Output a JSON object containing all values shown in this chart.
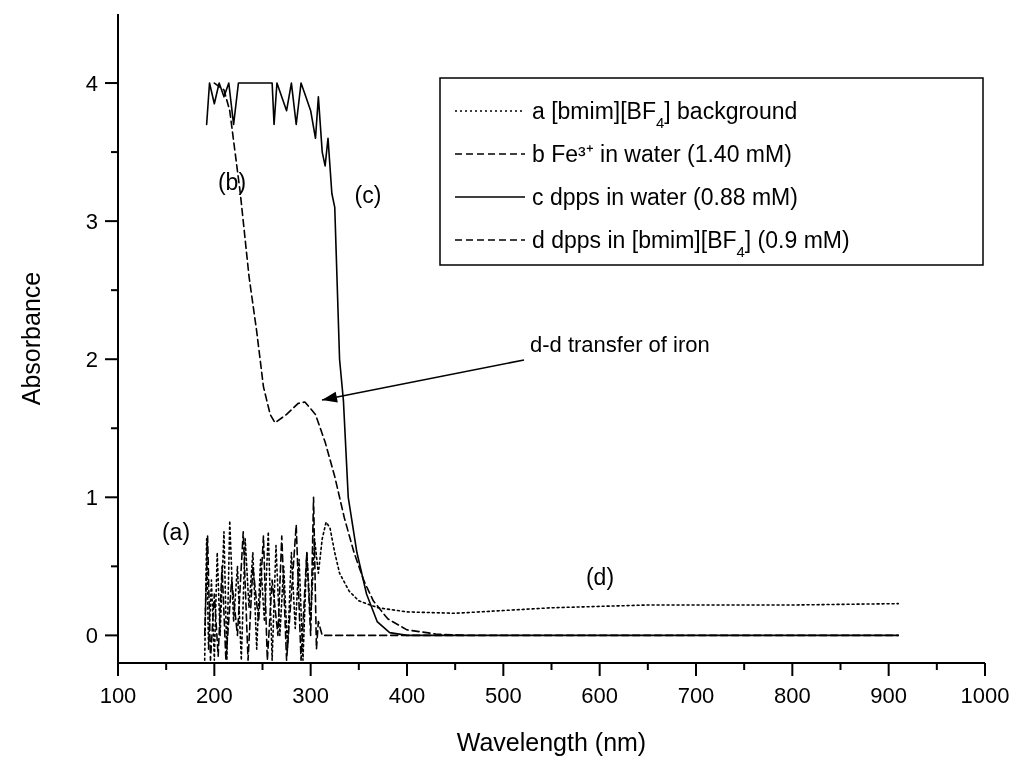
{
  "chart_data": {
    "type": "line",
    "xlabel": "Wavelength (nm)",
    "ylabel": "Absorbance",
    "xlim": [
      100,
      1000
    ],
    "ylim": [
      -0.2,
      4.5
    ],
    "xticks": [
      100,
      {
        "value": 150,
        "label": null
      },
      200,
      {
        "value": 250,
        "label": null
      },
      300,
      {
        "value": 350,
        "label": null
      },
      400,
      {
        "value": 450,
        "label": null
      },
      500,
      {
        "value": 550,
        "label": null
      },
      600,
      {
        "value": 650,
        "label": null
      },
      700,
      {
        "value": 750,
        "label": null
      },
      800,
      {
        "value": 850,
        "label": null
      },
      900,
      {
        "value": 950,
        "label": null
      },
      1000
    ],
    "yticks": [
      0,
      {
        "value": 0.5,
        "label": null
      },
      1,
      {
        "value": 1.5,
        "label": null
      },
      2,
      {
        "value": 2.5,
        "label": null
      },
      3,
      {
        "value": 3.5,
        "label": null
      },
      4
    ],
    "grid": false,
    "legend": "top right",
    "series": [
      {
        "name": "a [bmim][BF$_{4}$] background",
        "color": "#000000",
        "line_style": "dotted",
        "x": [
          190,
          192,
          194,
          197,
          200,
          203,
          206,
          210,
          213,
          216,
          220,
          224,
          228,
          232,
          236,
          240,
          244,
          248,
          252,
          256,
          260,
          264,
          268,
          272,
          276,
          280,
          284,
          288,
          292,
          296,
          300,
          304,
          308,
          312,
          316,
          320,
          325,
          330,
          340,
          350,
          370,
          400,
          450,
          500,
          550,
          600,
          650,
          700,
          800,
          910
        ],
        "values": [
          -0.18,
          0.7,
          -0.1,
          0.4,
          -0.18,
          0.6,
          0.0,
          0.75,
          -0.18,
          0.83,
          0.1,
          0.5,
          -0.18,
          0.7,
          0.2,
          0.6,
          -0.1,
          0.55,
          0.1,
          0.75,
          -0.18,
          0.65,
          0.0,
          0.5,
          -0.1,
          0.6,
          0.05,
          0.55,
          -0.18,
          0.6,
          0.1,
          0.7,
          0.45,
          0.7,
          0.82,
          0.78,
          0.6,
          0.45,
          0.32,
          0.25,
          0.2,
          0.17,
          0.16,
          0.18,
          0.2,
          0.21,
          0.22,
          0.22,
          0.22,
          0.23
        ]
      },
      {
        "name": "b Fe³⁺ in water (1.40 mM)",
        "color": "#000000",
        "line_style": "dashed",
        "x": [
          200,
          210,
          216,
          227,
          236,
          244,
          251,
          258,
          263,
          275,
          287,
          294,
          305,
          315,
          325,
          335,
          345,
          355,
          365,
          380,
          400,
          430,
          460
        ],
        "values": [
          4.0,
          3.95,
          3.8,
          3.2,
          2.6,
          2.2,
          1.8,
          1.6,
          1.54,
          1.6,
          1.68,
          1.69,
          1.6,
          1.4,
          1.15,
          0.85,
          0.6,
          0.4,
          0.25,
          0.12,
          0.04,
          0.01,
          0.0
        ]
      },
      {
        "name": "c dpps in water (0.88 mM)",
        "color": "#000000",
        "line_style": "solid",
        "x": [
          192,
          195,
          200,
          205,
          210,
          215,
          220,
          225,
          260,
          262,
          265,
          275,
          280,
          285,
          290,
          295,
          300,
          305,
          308,
          312,
          315,
          318,
          322,
          325,
          330,
          334,
          339,
          348,
          358,
          369,
          382,
          400,
          500,
          600,
          700,
          800,
          910
        ],
        "values": [
          3.7,
          4.0,
          3.85,
          4.0,
          3.9,
          4.0,
          3.7,
          4.0,
          4.0,
          3.7,
          4.0,
          3.8,
          4.0,
          3.7,
          4.0,
          3.9,
          3.8,
          3.6,
          3.9,
          3.5,
          3.4,
          3.6,
          3.2,
          3.1,
          2.0,
          1.7,
          1.0,
          0.6,
          0.3,
          0.1,
          0.02,
          0.0,
          0.0,
          0.0,
          0.0,
          0.0,
          0.0
        ]
      },
      {
        "name": "d dpps in [bmim][BF$_{4}$] (0.9 mM)",
        "color": "#000000",
        "line_style": "dashed",
        "x": [
          190,
          193,
          196,
          200,
          204,
          208,
          212,
          218,
          224,
          230,
          235,
          240,
          246,
          251,
          255,
          260,
          266,
          270,
          275,
          280,
          285,
          290,
          296,
          300,
          303,
          306,
          308,
          312,
          350,
          450,
          910
        ],
        "values": [
          0.0,
          0.72,
          -0.18,
          0.3,
          -0.15,
          0.5,
          -0.18,
          0.4,
          0.0,
          0.75,
          -0.18,
          0.5,
          0.1,
          0.72,
          -0.18,
          0.4,
          0.0,
          0.72,
          -0.18,
          0.3,
          0.8,
          -0.18,
          0.6,
          0.0,
          1.0,
          -0.1,
          0.1,
          0.0,
          0.0,
          0.0,
          0.0
        ]
      }
    ],
    "annotations": [
      "(a)",
      "(b)",
      "(c)",
      "(d)",
      "d-d transfer of iron"
    ]
  }
}
